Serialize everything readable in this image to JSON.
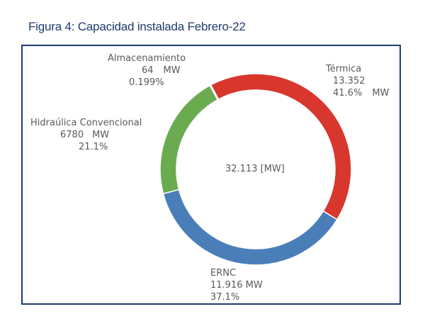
{
  "figure": {
    "caption": "Figura 4: Capacidad instalada Febrero-22"
  },
  "chart_data": {
    "type": "pie",
    "donut": true,
    "center_label": "32.113 [MW]",
    "slices": [
      {
        "label": "Térmica",
        "value": 13352,
        "value_text": "13.352",
        "unit": "MW",
        "percent": "41.6%",
        "color": "#d8372d"
      },
      {
        "label": "ERNC",
        "value": 11916,
        "value_text": "11.916",
        "unit": "MW",
        "percent": "37.1%",
        "color": "#4a7eb9"
      },
      {
        "label": "Hidraúlica Convencional",
        "value": 6780,
        "value_text": "6780",
        "unit": "MW",
        "percent": "21.1%",
        "color": "#6aab50"
      },
      {
        "label": "Almacenamiento",
        "value": 64,
        "value_text": "64",
        "unit": "MW",
        "percent": "0.199%",
        "color": "#a6a6a6"
      }
    ]
  }
}
